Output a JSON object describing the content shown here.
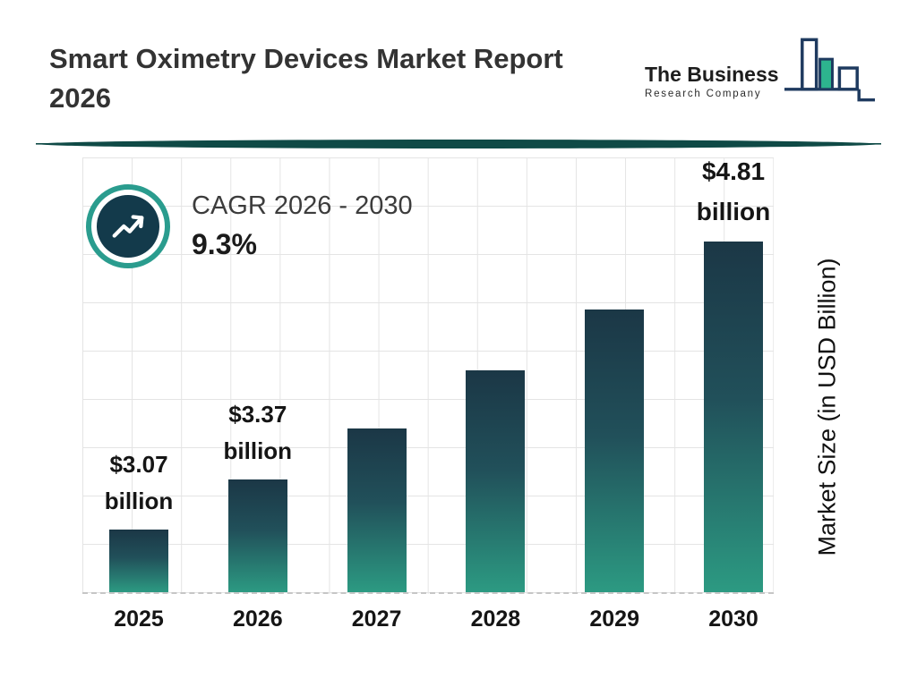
{
  "header": {
    "title_line1": "Smart Oximetry Devices Market Report",
    "title_line2": "2026"
  },
  "logo": {
    "line1": "The Business",
    "line2": "Research Company"
  },
  "cagr": {
    "label": "CAGR 2026 - 2030",
    "value": "9.3%"
  },
  "chart_data": {
    "type": "bar",
    "title": "Smart Oximetry Devices Market Report 2026",
    "categories": [
      "2025",
      "2026",
      "2027",
      "2028",
      "2029",
      "2030"
    ],
    "values": [
      3.07,
      3.37,
      3.68,
      4.03,
      4.4,
      4.81
    ],
    "estimated_indices": [
      2,
      3,
      4
    ],
    "value_labels": [
      {
        "amount": "$3.07",
        "unit": "billion",
        "emphasis": false
      },
      {
        "amount": "$3.37",
        "unit": "billion",
        "emphasis": false
      },
      null,
      null,
      null,
      {
        "amount": "$4.81",
        "unit": "billion",
        "emphasis": true
      }
    ],
    "xlabel": "",
    "ylabel": "Market Size (in USD Billion)",
    "legend": "none",
    "grid": true,
    "bar_gradient": [
      "#1b3746",
      "#2c9a82"
    ]
  },
  "colors": {
    "accent_teal": "#2a9c8e",
    "dark_navy": "#133a4b",
    "logo_green": "#2db48e",
    "logo_navy": "#1e3a5f",
    "divider": "#0f4a46"
  }
}
